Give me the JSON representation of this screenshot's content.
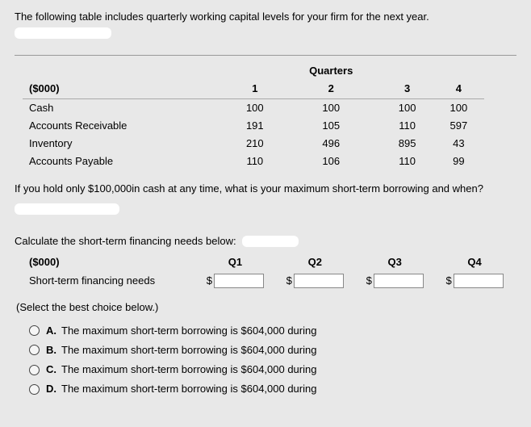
{
  "intro": "The following table includes quarterly working capital levels for your firm for the next year.",
  "super_header": "Quarters",
  "columns": {
    "label": "($000)",
    "c1": "1",
    "c2": "2",
    "c3": "3",
    "c4": "4"
  },
  "rows": [
    {
      "label": "Cash",
      "v1": "100",
      "v2": "100",
      "v3": "100",
      "v4": "100"
    },
    {
      "label": "Accounts Receivable",
      "v1": "191",
      "v2": "105",
      "v3": "110",
      "v4": "597"
    },
    {
      "label": "Inventory",
      "v1": "210",
      "v2": "496",
      "v3": "895",
      "v4": "43"
    },
    {
      "label": "Accounts Payable",
      "v1": "110",
      "v2": "106",
      "v3": "110",
      "v4": "99"
    }
  ],
  "question": "If you hold only $100,000in cash at any time, what is your maximum short-term borrowing and when?",
  "calc_label": "Calculate the short-term financing needs below:",
  "q_columns": {
    "label": "($000)",
    "q1": "Q1",
    "q2": "Q2",
    "q3": "Q3",
    "q4": "Q4"
  },
  "q_row_label": "Short-term financing needs",
  "dollar": "$",
  "select_note": "(Select the best choice below.)",
  "options": [
    {
      "letter": "A.",
      "text": "The maximum short-term borrowing is $604,000 during"
    },
    {
      "letter": "B.",
      "text": "The maximum short-term borrowing is $604,000 during"
    },
    {
      "letter": "C.",
      "text": "The maximum short-term borrowing is $604,000 during"
    },
    {
      "letter": "D.",
      "text": "The maximum short-term borrowing is $604,000 during"
    }
  ]
}
